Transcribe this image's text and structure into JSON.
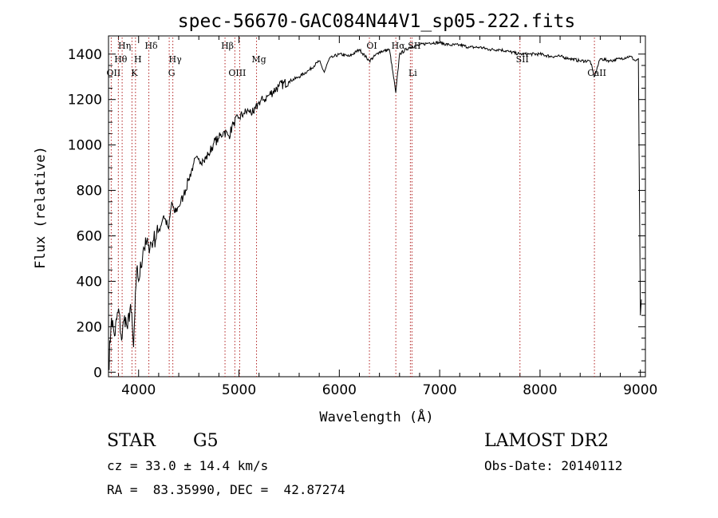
{
  "chart_data": {
    "type": "line",
    "title": "spec-56670-GAC084N44V1_sp05-222.fits",
    "xlabel": "Wavelength (Å)",
    "ylabel": "Flux (relative)",
    "xlim": [
      3700,
      9050
    ],
    "ylim": [
      -20,
      1480
    ],
    "xticks": [
      4000,
      5000,
      6000,
      7000,
      8000,
      9000
    ],
    "yticks": [
      0,
      200,
      400,
      600,
      800,
      1000,
      1200,
      1400
    ],
    "grid": false,
    "line_color": "#000000",
    "marker_color": "#b22222",
    "series": [
      {
        "name": "flux",
        "x": [
          3700,
          3730,
          3760,
          3800,
          3830,
          3860,
          3890,
          3920,
          3950,
          3980,
          4000,
          4050,
          4100,
          4150,
          4200,
          4250,
          4300,
          4330,
          4360,
          4400,
          4450,
          4500,
          4550,
          4600,
          4650,
          4700,
          4750,
          4800,
          4850,
          4900,
          4950,
          5000,
          5050,
          5100,
          5150,
          5200,
          5250,
          5300,
          5400,
          5500,
          5600,
          5700,
          5800,
          5850,
          5900,
          5950,
          6000,
          6100,
          6200,
          6300,
          6400,
          6500,
          6563,
          6600,
          6700,
          6800,
          6900,
          7000,
          7100,
          7200,
          7300,
          7400,
          7500,
          7600,
          7700,
          7800,
          7900,
          8000,
          8100,
          8200,
          8300,
          8400,
          8500,
          8540,
          8600,
          8700,
          8800,
          8900,
          8950,
          8980,
          9000,
          9010
        ],
        "y": [
          10,
          240,
          160,
          280,
          140,
          250,
          190,
          300,
          110,
          450,
          400,
          550,
          560,
          580,
          620,
          690,
          630,
          750,
          700,
          730,
          780,
          850,
          920,
          940,
          930,
          960,
          1010,
          1030,
          1060,
          1040,
          1100,
          1120,
          1140,
          1150,
          1140,
          1190,
          1200,
          1220,
          1260,
          1280,
          1300,
          1330,
          1370,
          1320,
          1380,
          1390,
          1400,
          1390,
          1420,
          1370,
          1410,
          1420,
          1230,
          1400,
          1430,
          1440,
          1450,
          1450,
          1440,
          1440,
          1430,
          1430,
          1420,
          1420,
          1410,
          1400,
          1400,
          1400,
          1390,
          1390,
          1380,
          1370,
          1370,
          1300,
          1380,
          1370,
          1380,
          1390,
          1370,
          1380,
          250,
          320
        ]
      }
    ],
    "lines": [
      {
        "name": "OII",
        "x": 3727,
        "label": "OII",
        "row": 3
      },
      {
        "name": "Hθ",
        "x": 3798,
        "label": "Hθ",
        "row": 2
      },
      {
        "name": "Hη",
        "x": 3836,
        "label": "Hη",
        "row": 1
      },
      {
        "name": "K",
        "x": 3934,
        "label": "K",
        "row": 3
      },
      {
        "name": "H",
        "x": 3969,
        "label": "H",
        "row": 2
      },
      {
        "name": "Hδ",
        "x": 4102,
        "label": "Hδ",
        "row": 1
      },
      {
        "name": "G",
        "x": 4305,
        "label": "G",
        "row": 3
      },
      {
        "name": "Hγ",
        "x": 4341,
        "label": "Hγ",
        "row": 2
      },
      {
        "name": "Hβ",
        "x": 4861,
        "label": "Hβ",
        "row": 1
      },
      {
        "name": "OIII",
        "x": 4959,
        "label": "OIII",
        "row": 3
      },
      {
        "name": "OIII-b",
        "x": 5007,
        "label": "",
        "row": 3
      },
      {
        "name": "Mg",
        "x": 5175,
        "label": "Mg",
        "row": 2
      },
      {
        "name": "OI",
        "x": 6300,
        "label": "OI",
        "row": 1
      },
      {
        "name": "Hα",
        "x": 6563,
        "label": "Hα",
        "row": 1
      },
      {
        "name": "Li",
        "x": 6708,
        "label": "Li",
        "row": 3
      },
      {
        "name": "SII",
        "x": 6724,
        "label": "SII",
        "row": 1
      },
      {
        "name": "SII-b",
        "x": 7800,
        "label": "SII",
        "row": 2
      },
      {
        "name": "CaII",
        "x": 8542,
        "label": "CaII",
        "row": 3
      }
    ]
  },
  "info": {
    "obj_class": "STAR",
    "subclass": "G5",
    "survey": "LAMOST DR2",
    "cz": "cz = 33.0 ± 14.4 km/s",
    "obs_date": "Obs-Date: 20140112",
    "coords": "RA =  83.35990, DEC =  42.87274"
  }
}
